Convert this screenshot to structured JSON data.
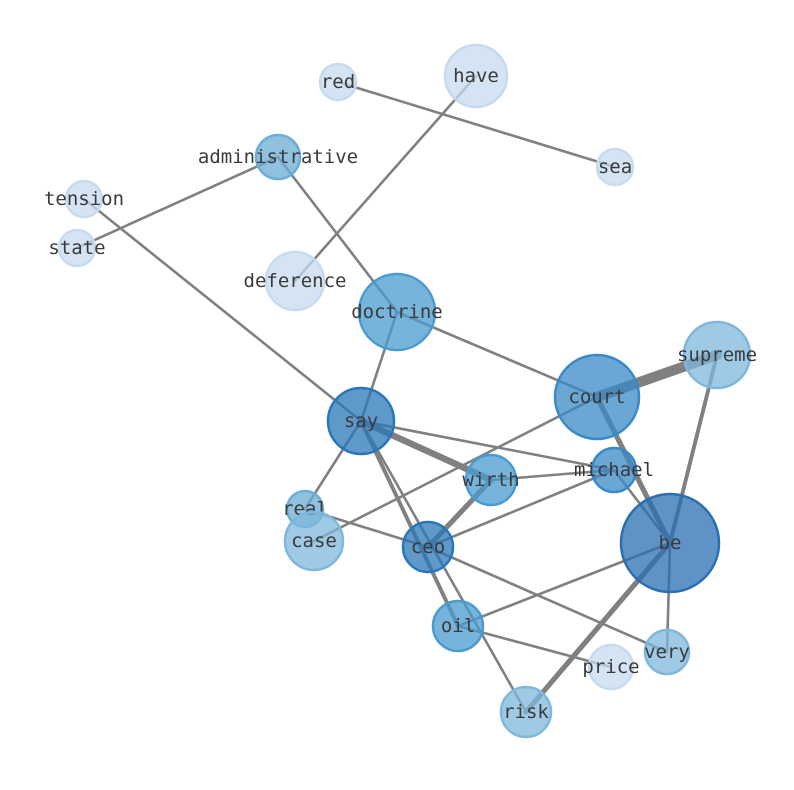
{
  "nodes": [
    {
      "id": "red",
      "label": "red",
      "color": "#c6dbef"
    },
    {
      "id": "have",
      "label": "have",
      "color": "#c6dbef"
    },
    {
      "id": "sea",
      "label": "sea",
      "color": "#c6dbef"
    },
    {
      "id": "administrative",
      "label": "administrative",
      "color": "#6baed6"
    },
    {
      "id": "tension",
      "label": "tension",
      "color": "#c6dbef"
    },
    {
      "id": "state",
      "label": "state",
      "color": "#c6dbef"
    },
    {
      "id": "deference",
      "label": "deference",
      "color": "#c6dbef"
    },
    {
      "id": "doctrine",
      "label": "doctrine",
      "color": "#4a9bd0"
    },
    {
      "id": "supreme",
      "label": "supreme",
      "color": "#7fb8dc"
    },
    {
      "id": "court",
      "label": "court",
      "color": "#3a8ac6"
    },
    {
      "id": "say",
      "label": "say",
      "color": "#2a77b8"
    },
    {
      "id": "michael",
      "label": "michael",
      "color": "#3a8ac6"
    },
    {
      "id": "wirth",
      "label": "wirth",
      "color": "#4a9bd0"
    },
    {
      "id": "real",
      "label": "real",
      "color": "#6baed6"
    },
    {
      "id": "case",
      "label": "case",
      "color": "#7fb8dc"
    },
    {
      "id": "ceo",
      "label": "ceo",
      "color": "#2a77b8"
    },
    {
      "id": "be",
      "label": "be",
      "color": "#2a6fb2"
    },
    {
      "id": "oil",
      "label": "oil",
      "color": "#4a9bd0"
    },
    {
      "id": "very",
      "label": "very",
      "color": "#7fb8dc"
    },
    {
      "id": "price",
      "label": "price",
      "color": "#c6dbef"
    },
    {
      "id": "risk",
      "label": "risk",
      "color": "#7fb8dc"
    }
  ],
  "edges": [
    {
      "source": "red",
      "target": "sea",
      "weight": 1
    },
    {
      "source": "have",
      "target": "deference",
      "weight": 1
    },
    {
      "source": "administrative",
      "target": "state",
      "weight": 1
    },
    {
      "source": "administrative",
      "target": "doctrine",
      "weight": 1
    },
    {
      "source": "tension",
      "target": "say",
      "weight": 1
    },
    {
      "source": "doctrine",
      "target": "court",
      "weight": 1
    },
    {
      "source": "doctrine",
      "target": "say",
      "weight": 1
    },
    {
      "source": "say",
      "target": "real",
      "weight": 1
    },
    {
      "source": "court",
      "target": "supreme",
      "weight": 4
    },
    {
      "source": "court",
      "target": "be",
      "weight": 2
    },
    {
      "source": "court",
      "target": "case",
      "weight": 1
    },
    {
      "source": "say",
      "target": "michael",
      "weight": 1
    },
    {
      "source": "say",
      "target": "wirth",
      "weight": 2.5
    },
    {
      "source": "say",
      "target": "oil",
      "weight": 1.5
    },
    {
      "source": "say",
      "target": "risk",
      "weight": 1
    },
    {
      "source": "wirth",
      "target": "michael",
      "weight": 1
    },
    {
      "source": "wirth",
      "target": "ceo",
      "weight": 2
    },
    {
      "source": "michael",
      "target": "ceo",
      "weight": 1
    },
    {
      "source": "michael",
      "target": "be",
      "weight": 1
    },
    {
      "source": "real",
      "target": "ceo",
      "weight": 1
    },
    {
      "source": "ceo",
      "target": "very",
      "weight": 1
    },
    {
      "source": "oil",
      "target": "be",
      "weight": 1
    },
    {
      "source": "oil",
      "target": "price",
      "weight": 1
    },
    {
      "source": "be",
      "target": "risk",
      "weight": 2
    },
    {
      "source": "be",
      "target": "very",
      "weight": 1
    },
    {
      "source": "be",
      "target": "supreme",
      "weight": 1.5
    }
  ]
}
